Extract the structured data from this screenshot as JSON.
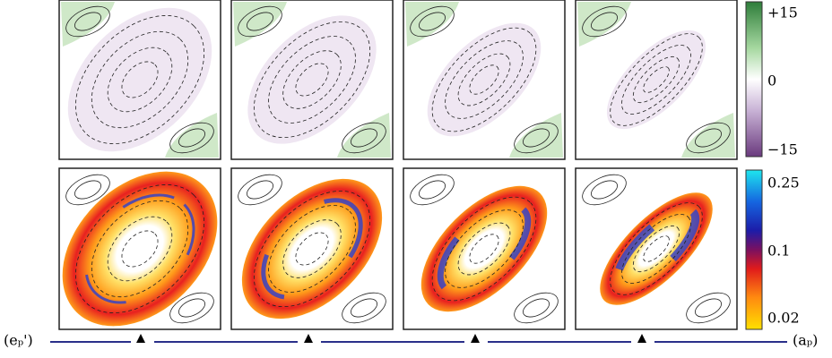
{
  "colorbars": [
    {
      "labels": [
        "+15",
        "0",
        "−15"
      ]
    },
    {
      "labels": [
        "0.25",
        "0.1",
        "0.02"
      ]
    }
  ],
  "timeline": {
    "left": "(eₚ')",
    "right": "(aₚ)"
  }
}
